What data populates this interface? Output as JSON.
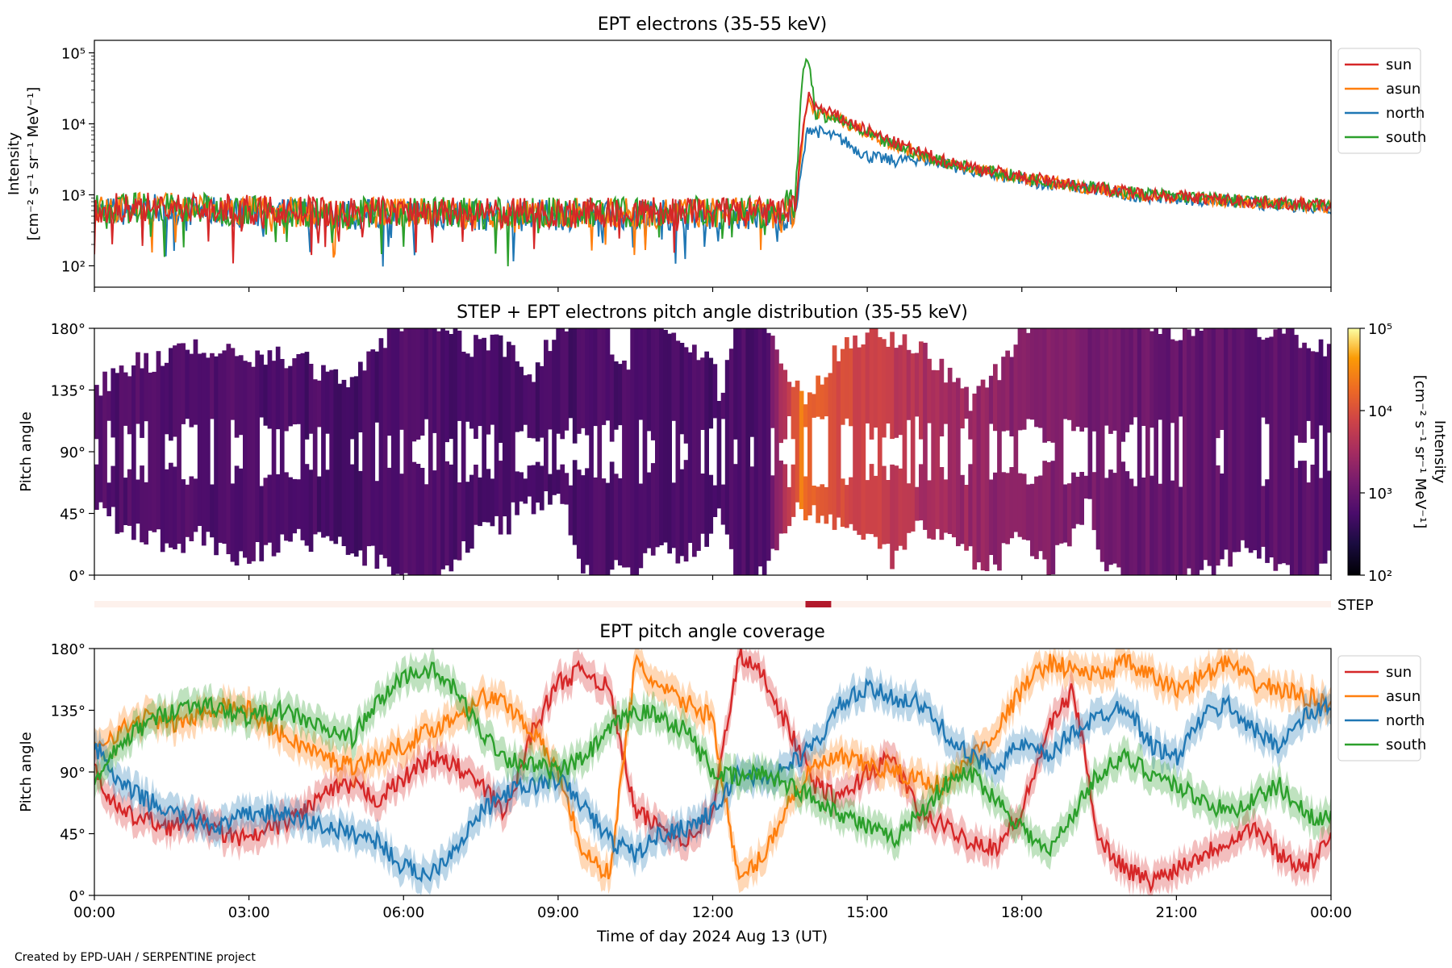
{
  "footer": "Created by EPD-UAH / SERPENTINE project",
  "xaxis_label": "Time of day 2024 Aug 13 (UT)",
  "x_ticks": [
    "00:00",
    "03:00",
    "06:00",
    "09:00",
    "12:00",
    "15:00",
    "18:00",
    "21:00",
    "00:00"
  ],
  "colors": {
    "sun": "#d62728",
    "asun": "#ff7f0e",
    "north": "#1f77b4",
    "south": "#2ca02c",
    "step_bar": "#fdf1ec",
    "step_mark": "#b2182b"
  },
  "chart_data": [
    {
      "id": "intensity",
      "type": "line",
      "title": "EPT electrons (35-55 keV)",
      "ylabel": [
        "Intensity",
        "[cm⁻² s⁻¹ sr⁻¹ MeV⁻¹]"
      ],
      "yscale": "log",
      "ylim": [
        50,
        150000
      ],
      "yticks": [
        "10²",
        "10³",
        "10⁴",
        "10⁵"
      ],
      "xlim_hours": [
        0,
        24
      ],
      "legend": "top-right",
      "x_hours": [
        0,
        1,
        2,
        3,
        4,
        5,
        6,
        7,
        8,
        9,
        10,
        11,
        12,
        13,
        13.6,
        13.75,
        13.85,
        14,
        14.5,
        15,
        15.5,
        16,
        16.5,
        17,
        18,
        19,
        20,
        21,
        22,
        23,
        24
      ],
      "series": [
        {
          "name": "sun",
          "values": [
            620,
            680,
            650,
            600,
            580,
            560,
            590,
            560,
            540,
            560,
            560,
            570,
            570,
            560,
            600,
            8000,
            26000,
            17000,
            12000,
            8000,
            5500,
            4000,
            3000,
            2500,
            1800,
            1400,
            1100,
            950,
            850,
            760,
            700
          ]
        },
        {
          "name": "asun",
          "values": [
            600,
            660,
            640,
            590,
            570,
            550,
            580,
            550,
            530,
            550,
            550,
            560,
            560,
            550,
            580,
            7000,
            22000,
            15000,
            11000,
            7500,
            5200,
            3800,
            2900,
            2400,
            1700,
            1350,
            1050,
            920,
            820,
            740,
            680
          ]
        },
        {
          "name": "north",
          "values": [
            560,
            620,
            600,
            560,
            540,
            520,
            550,
            520,
            500,
            520,
            520,
            530,
            530,
            520,
            500,
            3000,
            9000,
            8000,
            6000,
            3500,
            3000,
            3200,
            2800,
            2200,
            1600,
            1300,
            1000,
            900,
            800,
            720,
            660
          ]
        },
        {
          "name": "south",
          "values": [
            610,
            670,
            650,
            600,
            580,
            560,
            590,
            560,
            540,
            560,
            560,
            570,
            570,
            560,
            800,
            60000,
            90000,
            14000,
            11000,
            7000,
            5000,
            3800,
            2900,
            2400,
            1750,
            1400,
            1100,
            950,
            850,
            760,
            700
          ]
        }
      ]
    },
    {
      "id": "pad",
      "type": "heatmap",
      "title": "STEP + EPT electrons pitch angle distribution (35-55 keV)",
      "ylabel": "Pitch angle",
      "ylim": [
        0,
        180
      ],
      "yticks": [
        "0°",
        "45°",
        "90°",
        "135°",
        "180°"
      ],
      "colorbar_label": [
        "Intensity",
        "[cm⁻² s⁻¹ sr⁻¹ MeV⁻¹]"
      ],
      "colorbar_ticks": [
        "10²",
        "10³",
        "10⁴",
        "10⁵"
      ],
      "colorbar_range": [
        100,
        100000
      ],
      "colormap": "inferno",
      "x_hours": [
        0,
        1,
        2,
        3,
        4,
        5,
        6,
        7,
        8,
        9,
        10,
        11,
        12,
        13,
        13.75,
        14,
        14.5,
        15,
        15.5,
        16,
        17,
        18,
        19,
        20,
        21,
        22,
        23,
        24
      ],
      "intensity": [
        620,
        660,
        640,
        600,
        580,
        560,
        590,
        560,
        540,
        560,
        560,
        570,
        570,
        560,
        25000,
        14000,
        10000,
        7000,
        5000,
        3800,
        2500,
        1800,
        1400,
        1100,
        950,
        850,
        760,
        700
      ]
    },
    {
      "id": "step",
      "type": "bar",
      "label": "STEP",
      "interval_hours": [
        13.8,
        14.3
      ]
    },
    {
      "id": "coverage",
      "type": "line",
      "title": "EPT pitch angle coverage",
      "ylabel": "Pitch angle",
      "ylim": [
        0,
        180
      ],
      "yticks": [
        "0°",
        "45°",
        "90°",
        "135°",
        "180°"
      ],
      "legend": "top-right",
      "x_hours": [
        0,
        0.5,
        1,
        1.5,
        2,
        2.5,
        3,
        3.5,
        4,
        4.5,
        5,
        5.5,
        6,
        6.5,
        7,
        7.5,
        8,
        8.5,
        9,
        9.5,
        10,
        10.5,
        11,
        11.5,
        12,
        12.5,
        13,
        13.5,
        14,
        14.5,
        15,
        15.5,
        16,
        16.5,
        17,
        17.5,
        18,
        18.5,
        19,
        19.5,
        20,
        20.5,
        21,
        21.5,
        22,
        22.5,
        23,
        23.5,
        24
      ],
      "series": [
        {
          "name": "sun",
          "values": [
            90,
            60,
            55,
            50,
            55,
            45,
            40,
            50,
            60,
            75,
            80,
            70,
            85,
            100,
            95,
            80,
            60,
            120,
            155,
            165,
            150,
            60,
            50,
            40,
            60,
            175,
            160,
            120,
            80,
            70,
            90,
            100,
            60,
            50,
            40,
            35,
            60,
            120,
            150,
            40,
            20,
            10,
            20,
            30,
            40,
            50,
            30,
            20,
            40
          ]
        },
        {
          "name": "asun",
          "values": [
            110,
            120,
            130,
            125,
            130,
            140,
            135,
            120,
            110,
            100,
            95,
            100,
            110,
            120,
            130,
            145,
            140,
            120,
            90,
            30,
            15,
            170,
            150,
            140,
            130,
            10,
            30,
            70,
            95,
            100,
            95,
            90,
            85,
            80,
            100,
            120,
            150,
            170,
            165,
            160,
            170,
            160,
            150,
            160,
            170,
            155,
            150,
            145,
            140
          ]
        },
        {
          "name": "north",
          "values": [
            110,
            80,
            70,
            60,
            55,
            50,
            60,
            60,
            55,
            50,
            45,
            40,
            20,
            15,
            35,
            60,
            75,
            80,
            85,
            65,
            40,
            30,
            45,
            50,
            60,
            90,
            85,
            95,
            110,
            140,
            150,
            145,
            140,
            120,
            100,
            95,
            110,
            100,
            120,
            130,
            140,
            110,
            100,
            130,
            140,
            120,
            110,
            130,
            140
          ]
        },
        {
          "name": "south",
          "values": [
            80,
            110,
            125,
            135,
            140,
            135,
            130,
            135,
            130,
            120,
            115,
            140,
            160,
            165,
            150,
            120,
            100,
            95,
            90,
            100,
            120,
            135,
            130,
            120,
            90,
            85,
            90,
            80,
            70,
            60,
            50,
            40,
            60,
            80,
            90,
            70,
            50,
            30,
            60,
            90,
            100,
            90,
            80,
            70,
            60,
            70,
            80,
            60,
            55
          ]
        }
      ]
    }
  ]
}
